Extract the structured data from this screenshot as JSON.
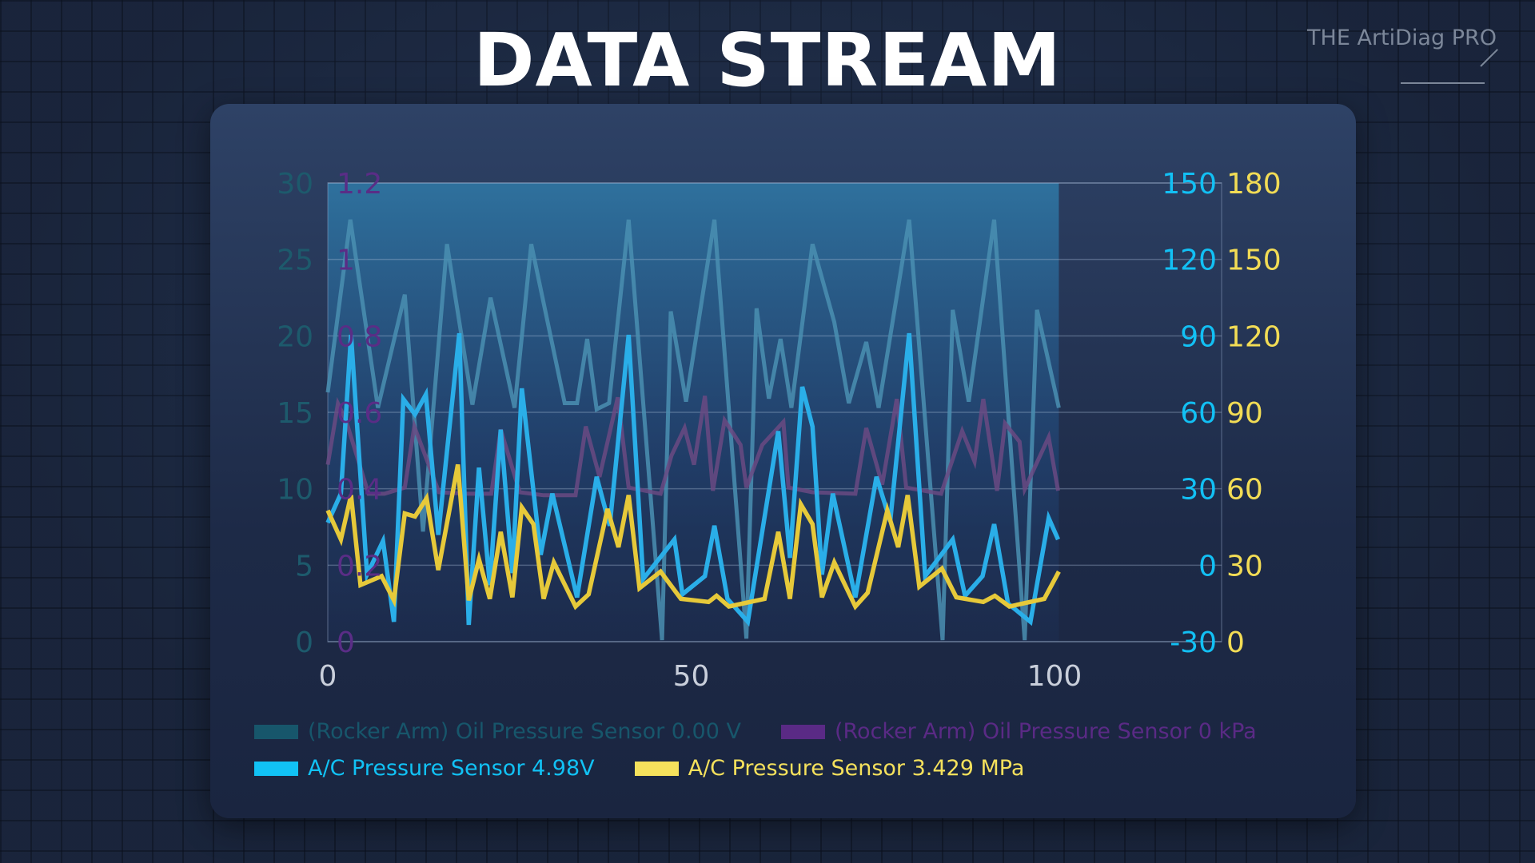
{
  "header": {
    "title": "DATA STREAM",
    "brand": "THE ArtiDiag PRO"
  },
  "chart_data": {
    "type": "line",
    "title": "DATA STREAM",
    "xlim": [
      0,
      123
    ],
    "x_ticks": [
      "0",
      "50",
      "100"
    ],
    "x_tick_values": [
      0,
      50,
      100
    ],
    "grid": true,
    "legend_placement": "bottom",
    "axes": [
      {
        "id": "teal",
        "side": "left-outer",
        "range": [
          0,
          30
        ],
        "ticks": [
          "0",
          "5",
          "10",
          "15",
          "20",
          "25",
          "30"
        ],
        "color": "#1d5a6c"
      },
      {
        "id": "purple",
        "side": "left-inner",
        "range": [
          0,
          1.2
        ],
        "ticks": [
          "0",
          "0.2",
          "0.4",
          "0.6",
          "0.8",
          "1",
          "1.2"
        ],
        "color": "#5a2d86"
      },
      {
        "id": "blue",
        "side": "right-inner",
        "range": [
          -30,
          150
        ],
        "ticks": [
          "-30",
          "0",
          "30",
          "60",
          "90",
          "120",
          "150"
        ],
        "color": "#12c0f4"
      },
      {
        "id": "yellow",
        "side": "right-outer",
        "range": [
          0,
          180
        ],
        "ticks": [
          "0",
          "30",
          "60",
          "90",
          "120",
          "150",
          "180"
        ],
        "color": "#f2dc55"
      }
    ],
    "series": [
      {
        "name": "(Rocker Arm) Oil Pressure Sensor 0.00 V",
        "axis": "teal",
        "color": "#4a8fb2",
        "legend_color": "#17566b",
        "x": [
          0,
          3.1,
          6.9,
          10.6,
          13.1,
          16.4,
          19.9,
          22.4,
          25.7,
          28,
          32.6,
          34.3,
          35.7,
          37,
          38.7,
          41.4,
          46,
          47.2,
          49.3,
          53.2,
          57.6,
          59,
          60.7,
          62.3,
          63.8,
          66.7,
          69.7,
          71.7,
          74.1,
          75.8,
          80,
          84.6,
          86,
          88.2,
          91.7,
          95.9,
          97.6,
          100.6
        ],
        "y": [
          16.3,
          27.6,
          15.3,
          22.7,
          7.2,
          26,
          15.5,
          22.5,
          15.3,
          26,
          15.6,
          15.6,
          19.8,
          15.2,
          15.6,
          27.6,
          0.1,
          21.6,
          15.7,
          27.6,
          0.2,
          21.8,
          15.9,
          19.8,
          15.3,
          26,
          20.9,
          15.6,
          19.6,
          15.3,
          27.6,
          0.1,
          21.7,
          15.7,
          27.6,
          0.1,
          21.7,
          15.3
        ]
      },
      {
        "name": "(Rocker Arm) Oil Pressure Sensor 0 kPa",
        "axis": "purple",
        "color": "#6a4a82",
        "legend_color": "#5a2a85",
        "x": [
          0,
          1.4,
          2.5,
          5.6,
          7.8,
          10.6,
          11.9,
          15.3,
          19,
          22.5,
          23.8,
          26.4,
          29.7,
          34.1,
          35.5,
          37.4,
          39.9,
          41.4,
          45.8,
          47.3,
          49.1,
          50.4,
          51.9,
          53,
          54.6,
          56.8,
          57.6,
          59.8,
          62.7,
          63.4,
          66.7,
          72.6,
          74.1,
          76.3,
          78.3,
          79.6,
          84.4,
          87.3,
          89,
          90.2,
          92.1,
          93.2,
          95.2,
          95.9,
          99.2,
          100.5
        ],
        "y": [
          0.463,
          0.623,
          0.579,
          0.387,
          0.387,
          0.403,
          0.563,
          0.391,
          0.387,
          0.387,
          0.555,
          0.391,
          0.383,
          0.383,
          0.563,
          0.431,
          0.639,
          0.403,
          0.387,
          0.487,
          0.559,
          0.463,
          0.643,
          0.395,
          0.579,
          0.515,
          0.403,
          0.515,
          0.575,
          0.403,
          0.391,
          0.387,
          0.559,
          0.411,
          0.635,
          0.403,
          0.387,
          0.551,
          0.471,
          0.635,
          0.395,
          0.571,
          0.523,
          0.399,
          0.535,
          0.395
        ]
      },
      {
        "name": "A/C Pressure Sensor 4.98V",
        "axis": "blue",
        "color": "#2aaee8",
        "legend_color": "#11c2f5",
        "x": [
          0,
          1.8,
          3.2,
          5.4,
          7.6,
          9.1,
          10.4,
          12,
          13.5,
          15.2,
          18.1,
          19.4,
          20.8,
          22.3,
          23.8,
          25.4,
          26.7,
          29.3,
          30.9,
          34.3,
          37,
          38.8,
          41.4,
          43.4,
          47.7,
          48.8,
          51.9,
          53.2,
          55,
          57.8,
          62,
          63.6,
          65.3,
          66.7,
          68,
          69.5,
          72.6,
          75.5,
          77.4,
          80,
          82.2,
          86,
          87.7,
          90.1,
          91.7,
          93.6,
          96.7,
          99.2,
          100.5
        ],
        "y": [
          16.7,
          28.1,
          90.4,
          -3.7,
          9.5,
          -22.2,
          65.2,
          59.2,
          67,
          11.9,
          91,
          -23.4,
          38.3,
          -7.8,
          53.2,
          -3.1,
          69.4,
          4.1,
          28.1,
          -12.6,
          34.7,
          15.5,
          90.4,
          -5.4,
          10.1,
          -11.4,
          -4.3,
          15.5,
          -13.2,
          -22.2,
          52.6,
          2.9,
          70,
          54.4,
          -3.7,
          28.1,
          -12.6,
          34.7,
          17.3,
          91,
          -4.3,
          10.1,
          -12,
          -4.3,
          16.1,
          -15,
          -22.2,
          18.5,
          10.1
        ]
      },
      {
        "name": "A/C Pressure Sensor 3.429 MPa",
        "axis": "yellow",
        "color": "#e6c93a",
        "legend_color": "#f5e15c",
        "x": [
          0,
          1.8,
          3.2,
          4.5,
          7.4,
          9.1,
          10.6,
          12,
          13.6,
          15.2,
          17.9,
          19.4,
          20.8,
          22.3,
          23.8,
          25.4,
          26.7,
          28.3,
          29.7,
          31.1,
          34.1,
          35.9,
          38.5,
          40,
          41.4,
          42.9,
          45.8,
          48.6,
          52.4,
          53.5,
          55.2,
          60.1,
          62,
          63.6,
          65.1,
          66.7,
          68,
          69.7,
          72.6,
          74.3,
          77,
          78.5,
          79.8,
          81.4,
          84.5,
          86.5,
          90.2,
          91.8,
          93.8,
          98.6,
          100.6
        ],
        "y": [
          51.5,
          40.1,
          57.5,
          22.2,
          25.7,
          16.2,
          50.3,
          49.1,
          56.3,
          28.1,
          69.5,
          16.2,
          32.3,
          16.8,
          43.1,
          17.4,
          52.7,
          46.1,
          16.8,
          31.1,
          13.8,
          18.6,
          52.1,
          37.1,
          57.5,
          21,
          27.5,
          16.8,
          15.6,
          18,
          13.8,
          16.8,
          43.1,
          16.8,
          53.9,
          46.1,
          17.4,
          31.1,
          13.8,
          19.2,
          51.5,
          37.1,
          57.5,
          21.6,
          28.7,
          17.4,
          15.6,
          18,
          13.8,
          16.8,
          27.5
        ]
      }
    ]
  }
}
